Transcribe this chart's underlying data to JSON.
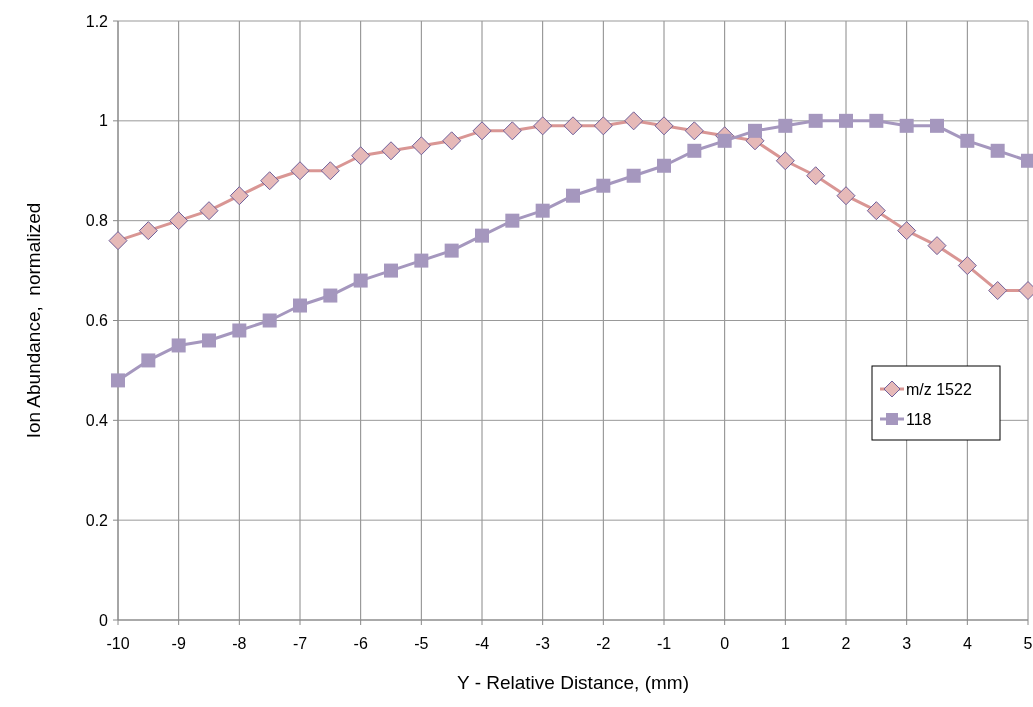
{
  "chart_data": {
    "type": "line",
    "xlabel": "Y - Relative Distance, (mm)",
    "ylabel": "Ion Abundance,  normalized",
    "x": [
      -10,
      -9.5,
      -9,
      -8.5,
      -8,
      -7.5,
      -7,
      -6.5,
      -6,
      -5.5,
      -5,
      -4.5,
      -4,
      -3.5,
      -3,
      -2.5,
      -2,
      -1.5,
      -1,
      -0.5,
      0,
      0.5,
      1,
      1.5,
      2,
      2.5,
      3,
      3.5,
      4,
      4.5,
      5
    ],
    "series": [
      {
        "name": "m/z 1522",
        "color": "#d99694",
        "marker": "diamond",
        "values": [
          0.76,
          0.78,
          0.8,
          0.82,
          0.85,
          0.88,
          0.9,
          0.9,
          0.93,
          0.94,
          0.95,
          0.96,
          0.98,
          0.98,
          0.99,
          0.99,
          0.99,
          1.0,
          0.99,
          0.98,
          0.97,
          0.96,
          0.92,
          0.89,
          0.85,
          0.82,
          0.78,
          0.75,
          0.71,
          0.66,
          0.66
        ]
      },
      {
        "name": "118",
        "color": "#a597be",
        "marker": "square",
        "values": [
          0.48,
          0.52,
          0.55,
          0.56,
          0.58,
          0.6,
          0.63,
          0.65,
          0.68,
          0.7,
          0.72,
          0.74,
          0.77,
          0.8,
          0.82,
          0.85,
          0.87,
          0.89,
          0.91,
          0.94,
          0.96,
          0.98,
          0.99,
          1.0,
          1.0,
          1.0,
          0.99,
          0.99,
          0.96,
          0.94,
          0.92
        ]
      }
    ],
    "xlim": [
      -10,
      5
    ],
    "xticks": [
      -10,
      -9,
      -8,
      -7,
      -6,
      -5,
      -4,
      -3,
      -2,
      -1,
      0,
      1,
      2,
      3,
      4,
      5
    ],
    "ylim": [
      0,
      1.2
    ],
    "yticks": [
      0,
      0.2,
      0.4,
      0.6,
      0.8,
      1,
      1.2
    ],
    "grid": true,
    "legend": "right",
    "line_style": "solid"
  }
}
